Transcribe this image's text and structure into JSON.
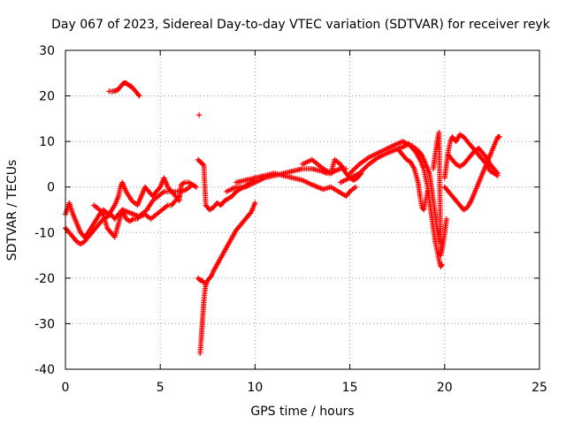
{
  "chart_data": {
    "type": "scatter",
    "title": "Day 067 of 2023, Sidereal Day-to-day VTEC variation (SDTVAR) for receiver reyk",
    "xlabel": "GPS time / hours",
    "ylabel": "SDTVAR / TECUs",
    "xlim": [
      0,
      25
    ],
    "ylim": [
      -40,
      30
    ],
    "xticks": [
      0,
      5,
      10,
      15,
      20,
      25
    ],
    "yticks": [
      -40,
      -30,
      -20,
      -10,
      0,
      10,
      20,
      30
    ],
    "grid": true,
    "grid_style": "dotted",
    "marker": "+",
    "marker_color": "#ff0000",
    "series": [
      {
        "name": "main-band-early",
        "points": [
          [
            0.0,
            -6
          ],
          [
            0.2,
            -3.5
          ],
          [
            0.4,
            -6
          ],
          [
            0.6,
            -8
          ],
          [
            0.8,
            -10
          ],
          [
            1.0,
            -11
          ],
          [
            1.2,
            -10
          ],
          [
            1.5,
            -8
          ],
          [
            1.8,
            -6
          ],
          [
            2.0,
            -5
          ],
          [
            2.3,
            -6
          ],
          [
            2.6,
            -4
          ],
          [
            2.8,
            -2
          ],
          [
            2.9,
            0
          ],
          [
            3.0,
            1
          ],
          [
            3.2,
            -1
          ],
          [
            3.5,
            -3
          ],
          [
            3.8,
            -4
          ],
          [
            4.0,
            -2
          ],
          [
            4.2,
            0
          ],
          [
            4.4,
            -1
          ],
          [
            4.6,
            -2
          ],
          [
            4.8,
            -1
          ],
          [
            5.0,
            0
          ],
          [
            5.2,
            2
          ],
          [
            5.4,
            0
          ],
          [
            5.6,
            -1
          ],
          [
            5.8,
            -2
          ],
          [
            6.0,
            -3
          ],
          [
            6.1,
            0.5
          ],
          [
            6.3,
            1
          ],
          [
            6.5,
            1
          ],
          [
            6.7,
            0.5
          ],
          [
            6.9,
            0
          ]
        ]
      },
      {
        "name": "lower-band-early",
        "points": [
          [
            0.0,
            -9
          ],
          [
            0.2,
            -10
          ],
          [
            0.4,
            -11
          ],
          [
            0.6,
            -12
          ],
          [
            0.8,
            -12.5
          ],
          [
            1.0,
            -12
          ],
          [
            1.2,
            -11
          ],
          [
            1.4,
            -10
          ],
          [
            1.6,
            -9
          ],
          [
            1.8,
            -8
          ],
          [
            2.0,
            -7
          ],
          [
            2.2,
            -6.5
          ],
          [
            2.4,
            -6
          ],
          [
            2.6,
            -7
          ],
          [
            2.8,
            -6
          ],
          [
            3.0,
            -5
          ],
          [
            3.3,
            -5.5
          ],
          [
            3.6,
            -6
          ],
          [
            3.9,
            -6.5
          ],
          [
            4.2,
            -6
          ],
          [
            4.5,
            -7
          ],
          [
            4.8,
            -6
          ],
          [
            5.1,
            -5
          ],
          [
            5.4,
            -4
          ],
          [
            5.6,
            -4
          ],
          [
            5.8,
            -3
          ],
          [
            6.0,
            -2
          ]
        ]
      },
      {
        "name": "mid-band-early",
        "points": [
          [
            1.5,
            -4
          ],
          [
            1.8,
            -5
          ],
          [
            2.0,
            -6
          ],
          [
            2.2,
            -9
          ],
          [
            2.4,
            -10
          ],
          [
            2.6,
            -11
          ],
          [
            2.8,
            -8
          ],
          [
            3.0,
            -5
          ],
          [
            3.2,
            -7
          ],
          [
            3.4,
            -7.5
          ],
          [
            3.6,
            -7
          ],
          [
            3.8,
            -7
          ],
          [
            4.0,
            -6
          ],
          [
            4.3,
            -5
          ],
          [
            4.6,
            -3
          ],
          [
            4.9,
            -2
          ],
          [
            5.2,
            -1
          ],
          [
            5.5,
            -1
          ],
          [
            5.8,
            -1
          ],
          [
            6.1,
            -1
          ],
          [
            6.4,
            -0.5
          ],
          [
            6.7,
            0.5
          ]
        ]
      },
      {
        "name": "upper-arc-early",
        "points": [
          [
            2.3,
            21
          ],
          [
            2.5,
            21
          ],
          [
            2.7,
            21.2
          ],
          [
            2.8,
            21.5
          ],
          [
            2.9,
            22
          ],
          [
            3.0,
            22.6
          ],
          [
            3.1,
            22.8
          ],
          [
            3.2,
            22.8
          ],
          [
            3.3,
            22.5
          ],
          [
            3.4,
            22.2
          ],
          [
            3.5,
            22
          ],
          [
            3.6,
            21.5
          ],
          [
            3.7,
            21
          ],
          [
            3.8,
            20.5
          ],
          [
            3.9,
            20
          ]
        ]
      },
      {
        "name": "isolated-spike",
        "points": [
          [
            7.05,
            15.8
          ]
        ]
      },
      {
        "name": "post-7h-band",
        "points": [
          [
            7.0,
            6
          ],
          [
            7.1,
            5.5
          ],
          [
            7.2,
            5.2
          ],
          [
            7.3,
            4.8
          ],
          [
            7.4,
            -4
          ],
          [
            7.6,
            -5
          ],
          [
            7.8,
            -4.5
          ],
          [
            8.0,
            -3.5
          ],
          [
            8.2,
            -4
          ],
          [
            8.4,
            -3
          ],
          [
            8.6,
            -2.5
          ],
          [
            8.8,
            -2
          ],
          [
            9.0,
            -1
          ],
          [
            9.2,
            -0.5
          ],
          [
            9.4,
            0
          ],
          [
            9.6,
            0.5
          ],
          [
            9.8,
            1
          ],
          [
            10.0,
            1.5
          ]
        ]
      },
      {
        "name": "deep-recovery-curve",
        "points": [
          [
            7.1,
            -36.5
          ],
          [
            7.15,
            -34
          ],
          [
            7.2,
            -31
          ],
          [
            7.25,
            -28
          ],
          [
            7.3,
            -25
          ],
          [
            7.35,
            -23
          ],
          [
            7.4,
            -21.5
          ],
          [
            7.5,
            -20.5
          ],
          [
            7.6,
            -20
          ],
          [
            7.7,
            -19.5
          ],
          [
            7.8,
            -18.5
          ],
          [
            8.0,
            -17
          ],
          [
            8.2,
            -15.5
          ],
          [
            8.4,
            -14
          ],
          [
            8.6,
            -12.5
          ],
          [
            8.8,
            -11
          ],
          [
            9.0,
            -9.5
          ],
          [
            9.2,
            -8.5
          ],
          [
            9.4,
            -7.5
          ],
          [
            9.6,
            -6.5
          ],
          [
            9.8,
            -5.5
          ],
          [
            10.0,
            -3.5
          ]
        ]
      },
      {
        "name": "short-segment-7h",
        "points": [
          [
            7.0,
            -20
          ],
          [
            7.1,
            -20.5
          ],
          [
            7.2,
            -20.5
          ],
          [
            7.3,
            -21
          ]
        ]
      },
      {
        "name": "mid-day-band",
        "points": [
          [
            8.5,
            -1
          ],
          [
            9.0,
            0
          ],
          [
            9.5,
            0
          ],
          [
            10.0,
            1
          ],
          [
            10.5,
            2
          ],
          [
            11.0,
            2.5
          ],
          [
            11.5,
            3
          ],
          [
            12.0,
            3.5
          ],
          [
            12.5,
            4
          ],
          [
            13.0,
            4
          ],
          [
            13.5,
            3.5
          ],
          [
            13.8,
            3
          ],
          [
            14.0,
            3
          ],
          [
            14.2,
            3.5
          ],
          [
            14.5,
            4
          ],
          [
            14.8,
            4
          ]
        ]
      },
      {
        "name": "mid-day-band-2",
        "points": [
          [
            9.0,
            1
          ],
          [
            9.5,
            1.5
          ],
          [
            10.0,
            2
          ],
          [
            10.5,
            2.5
          ],
          [
            11.0,
            3
          ],
          [
            11.5,
            2.5
          ],
          [
            12.0,
            2
          ],
          [
            12.5,
            1.5
          ],
          [
            13.0,
            0.5
          ],
          [
            13.3,
            0
          ],
          [
            13.6,
            -0.5
          ],
          [
            14.0,
            0
          ],
          [
            14.4,
            -1
          ],
          [
            14.8,
            -2
          ],
          [
            15.0,
            -1
          ],
          [
            15.3,
            0
          ]
        ]
      },
      {
        "name": "mid-day-band-3",
        "points": [
          [
            12.5,
            5
          ],
          [
            13.0,
            6
          ],
          [
            13.3,
            5
          ],
          [
            13.6,
            4
          ],
          [
            14.0,
            3
          ],
          [
            14.2,
            6
          ],
          [
            14.5,
            5
          ],
          [
            14.8,
            3
          ],
          [
            15.0,
            2
          ],
          [
            15.2,
            1.5
          ],
          [
            15.4,
            2
          ],
          [
            15.6,
            3
          ]
        ]
      },
      {
        "name": "afternoon-rise",
        "points": [
          [
            14.5,
            1
          ],
          [
            15.0,
            2
          ],
          [
            15.5,
            3
          ],
          [
            16.0,
            5
          ],
          [
            16.5,
            6.5
          ],
          [
            17.0,
            7.5
          ],
          [
            17.3,
            8
          ],
          [
            17.6,
            8.5
          ],
          [
            17.9,
            9
          ],
          [
            18.1,
            9.5
          ],
          [
            18.3,
            8.5
          ],
          [
            18.5,
            7.5
          ],
          [
            18.7,
            6
          ],
          [
            18.9,
            4
          ],
          [
            19.0,
            2
          ],
          [
            19.1,
            0
          ],
          [
            19.2,
            -3
          ],
          [
            19.3,
            -6
          ],
          [
            19.4,
            -9
          ],
          [
            19.5,
            -12
          ],
          [
            19.6,
            -14
          ],
          [
            19.7,
            -16
          ],
          [
            19.8,
            -17.5
          ],
          [
            19.85,
            -17
          ]
        ]
      },
      {
        "name": "afternoon-rise-2",
        "points": [
          [
            15.0,
            3
          ],
          [
            15.5,
            5
          ],
          [
            16.0,
            6.5
          ],
          [
            16.5,
            7.5
          ],
          [
            17.0,
            8.5
          ],
          [
            17.5,
            9.5
          ],
          [
            17.8,
            10
          ],
          [
            18.0,
            9.5
          ],
          [
            18.3,
            9
          ],
          [
            18.6,
            8
          ],
          [
            18.8,
            7
          ],
          [
            19.0,
            5
          ],
          [
            19.2,
            3
          ],
          [
            19.3,
            0
          ],
          [
            19.4,
            -3
          ],
          [
            19.5,
            -6
          ],
          [
            19.6,
            -9
          ],
          [
            19.7,
            -12
          ]
        ]
      },
      {
        "name": "afternoon-rise-3",
        "points": [
          [
            17.6,
            8
          ],
          [
            17.8,
            7
          ],
          [
            18.0,
            6
          ],
          [
            18.2,
            5.5
          ],
          [
            18.4,
            4
          ],
          [
            18.6,
            1
          ],
          [
            18.7,
            -2
          ],
          [
            18.8,
            -4.5
          ],
          [
            18.9,
            -5
          ],
          [
            19.0,
            -3
          ],
          [
            19.1,
            -1
          ]
        ]
      },
      {
        "name": "late-recovery",
        "points": [
          [
            19.4,
            4
          ],
          [
            19.5,
            7
          ],
          [
            19.6,
            10
          ],
          [
            19.7,
            12
          ],
          [
            19.8,
            -15
          ],
          [
            19.9,
            -13
          ],
          [
            20.0,
            -10
          ],
          [
            20.1,
            -7
          ]
        ]
      },
      {
        "name": "late-evening-band",
        "points": [
          [
            20.0,
            2
          ],
          [
            20.1,
            5
          ],
          [
            20.2,
            8
          ],
          [
            20.3,
            10
          ],
          [
            20.4,
            11
          ],
          [
            20.5,
            10.5
          ],
          [
            20.6,
            10
          ],
          [
            20.8,
            11.5
          ],
          [
            21.0,
            11
          ],
          [
            21.2,
            10
          ],
          [
            21.4,
            9
          ],
          [
            21.6,
            8
          ],
          [
            21.8,
            7
          ],
          [
            22.0,
            6
          ],
          [
            22.2,
            5
          ],
          [
            22.4,
            3.5
          ],
          [
            22.6,
            3
          ],
          [
            22.8,
            2.5
          ]
        ]
      },
      {
        "name": "late-evening-band-2",
        "points": [
          [
            20.0,
            0
          ],
          [
            20.2,
            -1
          ],
          [
            20.4,
            -2
          ],
          [
            20.6,
            -3
          ],
          [
            20.8,
            -4
          ],
          [
            21.0,
            -5
          ],
          [
            21.2,
            -4.5
          ],
          [
            21.4,
            -3
          ],
          [
            21.6,
            -1
          ],
          [
            21.8,
            1
          ],
          [
            22.0,
            3
          ],
          [
            22.2,
            5
          ],
          [
            22.4,
            7
          ],
          [
            22.6,
            9
          ],
          [
            22.8,
            11
          ],
          [
            22.9,
            11
          ]
        ]
      },
      {
        "name": "late-evening-band-3",
        "points": [
          [
            20.2,
            7
          ],
          [
            20.4,
            6
          ],
          [
            20.6,
            5
          ],
          [
            20.8,
            4.5
          ],
          [
            21.0,
            5
          ],
          [
            21.2,
            6
          ],
          [
            21.4,
            7
          ],
          [
            21.6,
            8
          ],
          [
            21.8,
            8.5
          ],
          [
            22.0,
            7.5
          ],
          [
            22.2,
            6.5
          ],
          [
            22.4,
            5
          ],
          [
            22.6,
            4
          ],
          [
            22.8,
            3
          ]
        ]
      }
    ]
  }
}
